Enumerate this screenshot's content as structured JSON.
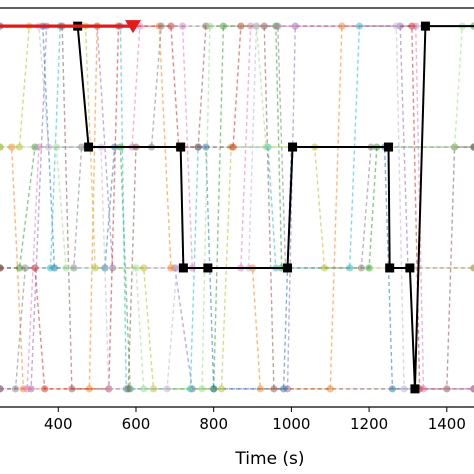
{
  "chart_data": {
    "type": "line",
    "title": "",
    "xlabel": "Time (s)",
    "ylabel": "",
    "xlim": [
      250,
      1470
    ],
    "ylim": [
      -0.15,
      3.15
    ],
    "x_ticks": [
      400,
      600,
      800,
      1000,
      1200,
      1400
    ],
    "x_tick_labels": [
      "400",
      "600",
      "800",
      "1000",
      "1200",
      "1400"
    ],
    "levels": [
      0,
      1,
      2,
      3
    ],
    "grid": true,
    "legend": "none",
    "highlight_series": {
      "color": "#000000",
      "marker": "square",
      "x": [
        250,
        450,
        478,
        715,
        722,
        785,
        990,
        1003,
        1250,
        1253,
        1305,
        1318,
        1345,
        1470
      ],
      "y": [
        3,
        3,
        2,
        2,
        1,
        1,
        1,
        2,
        2,
        1,
        1,
        0,
        3,
        3
      ]
    },
    "arrow_series": {
      "color": "#e31a1c",
      "x": [
        250,
        600
      ],
      "y": [
        3,
        3
      ]
    },
    "background_series_colors": [
      "#9467bd",
      "#2ca02c",
      "#ff7f0e",
      "#1f77b4",
      "#e377c2",
      "#17becf",
      "#bcbd22",
      "#8c564b",
      "#d62728",
      "#7f7f7f",
      "#98df8a",
      "#c5b0d5"
    ],
    "background_series": [
      {
        "x": [
          250,
          330,
          370,
          500,
          540,
          700,
          745,
          990,
          1010,
          1280,
          1300,
          1470
        ],
        "y": [
          0,
          0,
          3,
          3,
          1,
          1,
          0,
          0,
          3,
          3,
          1,
          1
        ]
      },
      {
        "x": [
          250,
          300,
          340,
          560,
          585,
          800,
          825,
          960,
          975,
          1200,
          1220,
          1470
        ],
        "y": [
          1,
          1,
          2,
          2,
          0,
          0,
          3,
          3,
          1,
          1,
          2,
          2
        ]
      },
      {
        "x": [
          250,
          280,
          310,
          480,
          500,
          660,
          690,
          900,
          920,
          1100,
          1130,
          1470
        ],
        "y": [
          2,
          2,
          0,
          0,
          3,
          3,
          1,
          1,
          0,
          0,
          3,
          3
        ]
      },
      {
        "x": [
          250,
          360,
          390,
          520,
          545,
          780,
          800,
          980,
          1000,
          1240,
          1260,
          1470
        ],
        "y": [
          3,
          3,
          1,
          1,
          2,
          2,
          0,
          0,
          2,
          2,
          0,
          0
        ]
      },
      {
        "x": [
          250,
          320,
          350,
          590,
          610,
          720,
          745,
          870,
          895,
          1320,
          1340,
          1470
        ],
        "y": [
          0,
          0,
          2,
          2,
          3,
          3,
          1,
          1,
          3,
          3,
          0,
          0
        ]
      },
      {
        "x": [
          250,
          380,
          405,
          560,
          575,
          740,
          760,
          940,
          960,
          1150,
          1175,
          1470
        ],
        "y": [
          1,
          1,
          3,
          3,
          0,
          0,
          2,
          2,
          1,
          1,
          3,
          3
        ]
      },
      {
        "x": [
          250,
          300,
          325,
          470,
          495,
          620,
          645,
          820,
          845,
          1060,
          1085,
          1470
        ],
        "y": [
          2,
          2,
          3,
          3,
          1,
          1,
          0,
          0,
          2,
          2,
          1,
          1
        ]
      },
      {
        "x": [
          250,
          410,
          435,
          580,
          600,
          760,
          780,
          930,
          955,
          1400,
          1420,
          1470
        ],
        "y": [
          3,
          3,
          0,
          0,
          2,
          2,
          3,
          3,
          0,
          0,
          2,
          2
        ]
      },
      {
        "x": [
          250,
          340,
          365,
          530,
          555,
          690,
          710,
          850,
          870,
          1310,
          1330,
          1470
        ],
        "y": [
          1,
          1,
          0,
          0,
          3,
          3,
          2,
          2,
          3,
          3,
          0,
          0
        ]
      },
      {
        "x": [
          250,
          290,
          315,
          440,
          460,
          640,
          665,
          965,
          985,
          1180,
          1205,
          1470
        ],
        "y": [
          0,
          0,
          1,
          1,
          2,
          2,
          3,
          3,
          1,
          1,
          2,
          2
        ]
      },
      {
        "x": [
          250,
          395,
          420,
          600,
          620,
          770,
          790,
          910,
          935,
          1420,
          1440,
          1470
        ],
        "y": [
          2,
          2,
          1,
          1,
          0,
          0,
          3,
          3,
          2,
          2,
          3,
          3
        ]
      },
      {
        "x": [
          250,
          350,
          375,
          510,
          530,
          680,
          705,
          890,
          910,
          1270,
          1290,
          1470
        ],
        "y": [
          3,
          3,
          2,
          2,
          0,
          0,
          1,
          1,
          3,
          3,
          0,
          0
        ]
      }
    ]
  }
}
